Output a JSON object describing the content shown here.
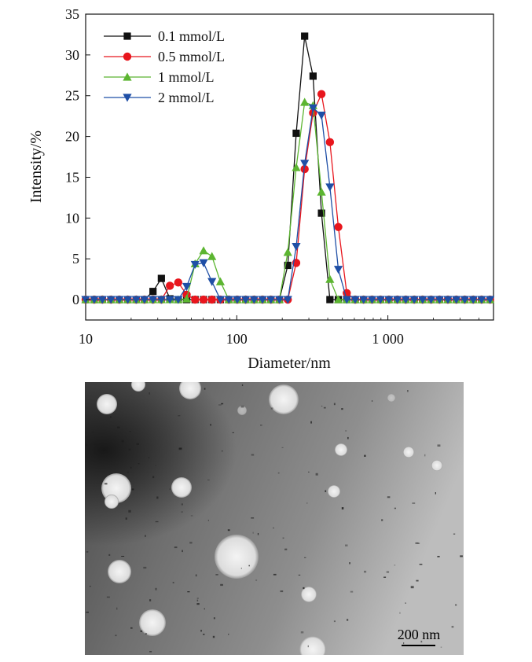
{
  "chart_data": {
    "type": "line",
    "xlabel": "Diameter/nm",
    "ylabel": "Intensity/%",
    "x_scale": "log",
    "xlim": [
      10,
      5000
    ],
    "ylim": [
      -2.5,
      35
    ],
    "x_ticks": [
      10,
      100,
      1000
    ],
    "x_tick_labels": [
      "10",
      "100",
      "1 000"
    ],
    "y_ticks": [
      0,
      5,
      10,
      15,
      20,
      25,
      30,
      35
    ],
    "y_tick_labels": [
      "0",
      "5",
      "10",
      "15",
      "20",
      "25",
      "30",
      "35"
    ],
    "grid": false,
    "legend_position": "top-left",
    "x": [
      10,
      11.4,
      12.9,
      14.7,
      16.7,
      19,
      21.6,
      24.5,
      27.9,
      31.7,
      36.1,
      41,
      46.6,
      53,
      60.3,
      68.5,
      77.9,
      88.6,
      100.7,
      114.5,
      130.2,
      148,
      168.3,
      191.4,
      217.6,
      247.4,
      281.3,
      319.8,
      363.6,
      413.5,
      470.1,
      534.5,
      607.8,
      691.1,
      785.8,
      893.5,
      1015.9,
      1155.1,
      1313.4,
      1493.4,
      1698.1,
      1930.8,
      2195.4,
      2496.2,
      2838.3,
      3227.3,
      3669.5,
      4172.4,
      4744.2
    ],
    "series": [
      {
        "name": "0.1 mmol/L",
        "color": "#111111",
        "marker": "square",
        "values": [
          0,
          0,
          0,
          0,
          0,
          0,
          0,
          0,
          1.0,
          2.6,
          0.1,
          0,
          0,
          0,
          0,
          0,
          0,
          0,
          0,
          0,
          0,
          0,
          0,
          0,
          4.2,
          20.4,
          32.3,
          27.4,
          10.6,
          0,
          0,
          0,
          0,
          0,
          0,
          0,
          0,
          0,
          0,
          0,
          0,
          0,
          0,
          0,
          0,
          0,
          0,
          0,
          0
        ]
      },
      {
        "name": "0.5 mmol/L",
        "color": "#e8161d",
        "marker": "circle",
        "values": [
          0,
          0,
          0,
          0,
          0,
          0,
          0,
          0,
          0,
          0,
          1.7,
          2.1,
          0.6,
          0,
          0,
          0,
          0,
          0,
          0,
          0,
          0,
          0,
          0,
          0,
          0,
          4.5,
          16.0,
          22.9,
          25.2,
          19.3,
          8.9,
          0.8,
          0,
          0,
          0,
          0,
          0,
          0,
          0,
          0,
          0,
          0,
          0,
          0,
          0,
          0,
          0,
          0,
          0
        ]
      },
      {
        "name": "1 mmol/L",
        "color": "#5cb531",
        "marker": "triangle-up",
        "values": [
          0,
          0,
          0,
          0,
          0,
          0,
          0,
          0,
          0,
          0,
          0,
          0,
          0.1,
          4.4,
          6.0,
          5.3,
          2.2,
          0,
          0,
          0,
          0,
          0,
          0,
          0,
          5.8,
          16.2,
          24.2,
          23.8,
          13.2,
          2.5,
          0,
          0,
          0,
          0,
          0,
          0,
          0,
          0,
          0,
          0,
          0,
          0,
          0,
          0,
          0,
          0,
          0,
          0,
          0
        ]
      },
      {
        "name": "2 mmol/L",
        "color": "#1f4fa6",
        "marker": "triangle-down",
        "values": [
          0,
          0,
          0,
          0,
          0,
          0,
          0,
          0,
          0,
          0,
          0,
          0,
          1.6,
          4.3,
          4.5,
          2.2,
          0,
          0,
          0,
          0,
          0,
          0,
          0,
          0,
          0,
          6.5,
          16.7,
          23.5,
          22.6,
          13.8,
          3.7,
          0,
          0,
          0,
          0,
          0,
          0,
          0,
          0,
          0,
          0,
          0,
          0,
          0,
          0,
          0,
          0,
          0,
          0
        ]
      }
    ]
  },
  "micrograph": {
    "scale_bar_label": "200 nm"
  }
}
